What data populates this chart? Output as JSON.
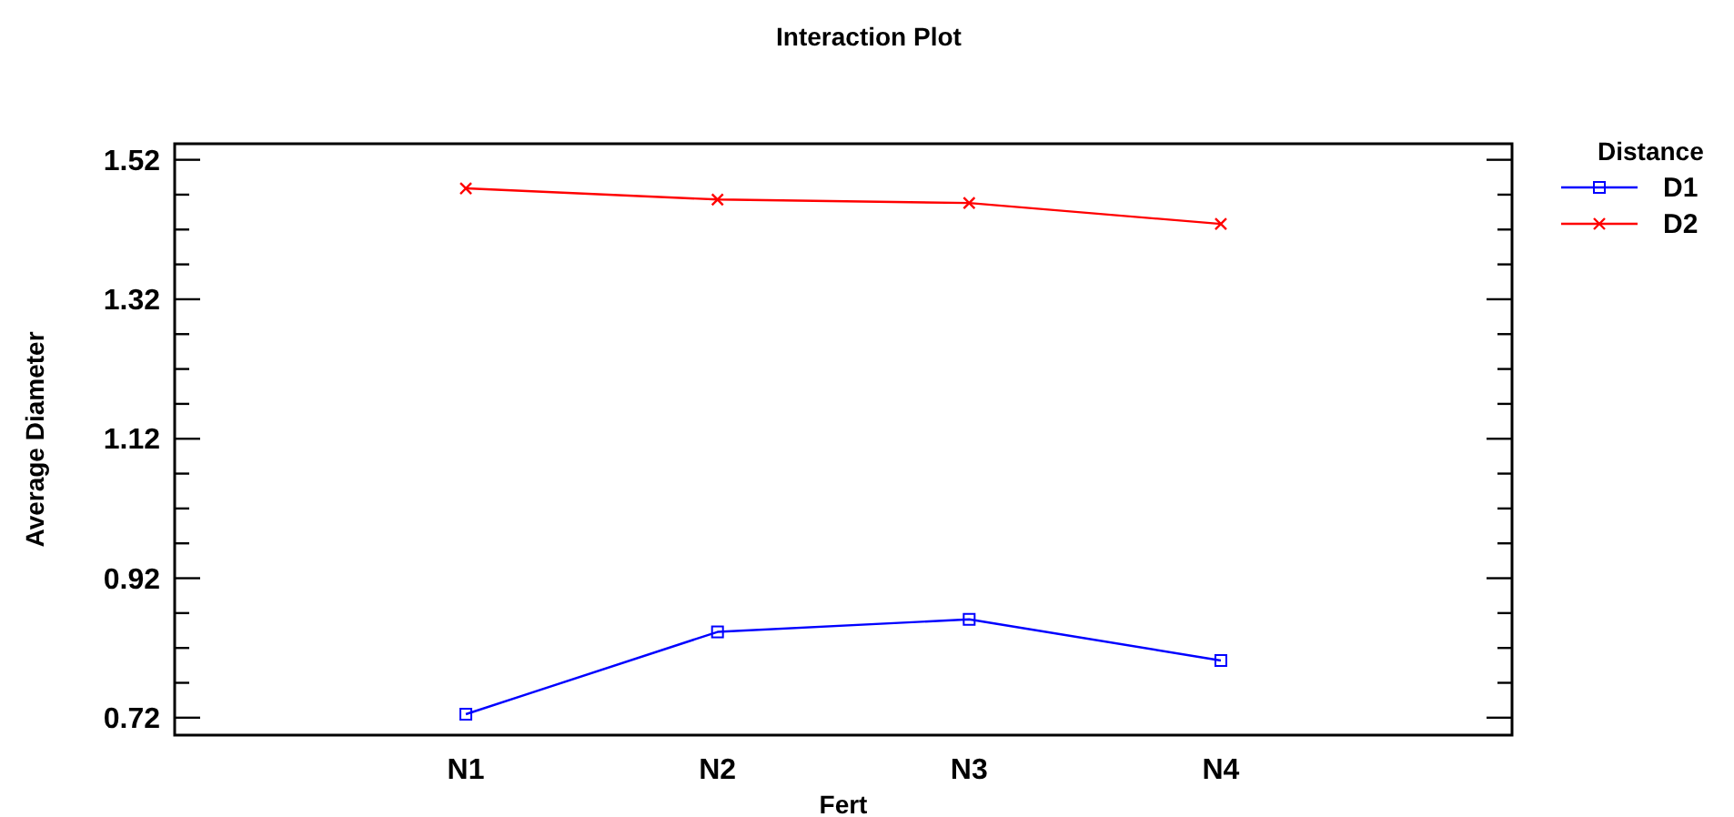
{
  "chart_data": {
    "type": "line",
    "title": "Interaction Plot",
    "xlabel": "Fert",
    "ylabel": "Average Diameter",
    "legend_title": "Distance",
    "categories": [
      "N1",
      "N2",
      "N3",
      "N4"
    ],
    "series": [
      {
        "name": "D1",
        "color": "#0000ff",
        "marker": "square",
        "values": [
          0.725,
          0.843,
          0.861,
          0.802
        ]
      },
      {
        "name": "D2",
        "color": "#ff0000",
        "marker": "cross",
        "values": [
          1.479,
          1.463,
          1.458,
          1.428
        ]
      }
    ],
    "ylim": [
      0.695,
      1.543
    ],
    "yticks": [
      0.72,
      {
        "value": 0.77,
        "label": null
      },
      {
        "value": 0.82,
        "label": null
      },
      {
        "value": 0.87,
        "label": null
      },
      0.92,
      {
        "value": 0.97,
        "label": null
      },
      {
        "value": 1.02,
        "label": null
      },
      {
        "value": 1.07,
        "label": null
      },
      1.12,
      {
        "value": 1.17,
        "label": null
      },
      {
        "value": 1.22,
        "label": null
      },
      {
        "value": 1.27,
        "label": null
      },
      1.32,
      {
        "value": 1.37,
        "label": null
      },
      {
        "value": 1.42,
        "label": null
      },
      {
        "value": 1.47,
        "label": null
      },
      1.52
    ],
    "legend": "top right",
    "grid": false,
    "line_style": "solid"
  }
}
